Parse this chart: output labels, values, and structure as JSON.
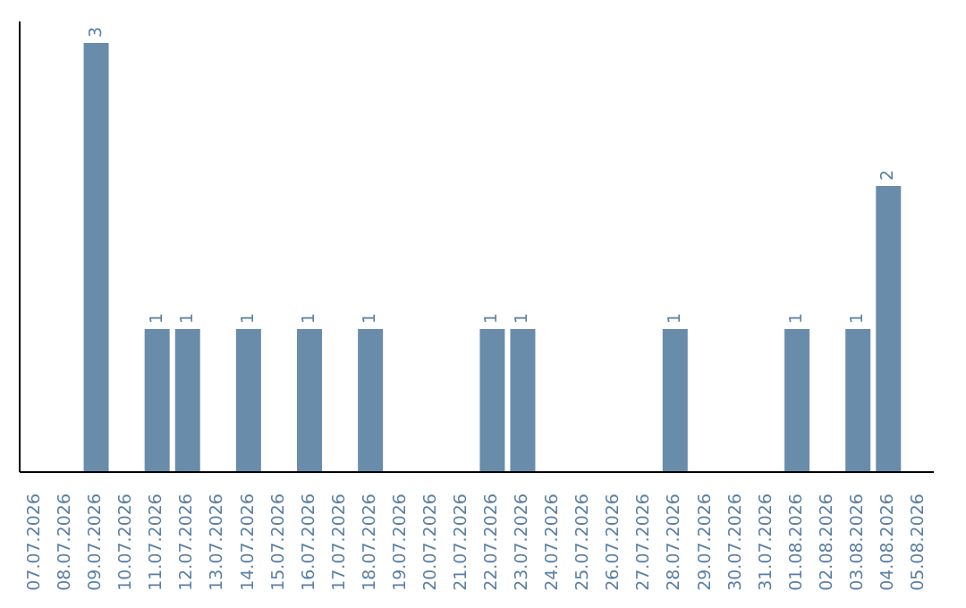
{
  "chart_data": {
    "type": "bar",
    "categories": [
      "07.07.2026",
      "08.07.2026",
      "09.07.2026",
      "10.07.2026",
      "11.07.2026",
      "12.07.2026",
      "13.07.2026",
      "14.07.2026",
      "15.07.2026",
      "16.07.2026",
      "17.07.2026",
      "18.07.2026",
      "19.07.2026",
      "20.07.2026",
      "21.07.2026",
      "22.07.2026",
      "23.07.2026",
      "24.07.2026",
      "25.07.2026",
      "26.07.2026",
      "27.07.2026",
      "28.07.2026",
      "29.07.2026",
      "30.07.2026",
      "31.07.2026",
      "01.08.2026",
      "02.08.2026",
      "03.08.2026",
      "04.08.2026",
      "05.08.2026"
    ],
    "values": [
      0,
      0,
      3,
      0,
      1,
      1,
      0,
      1,
      0,
      1,
      0,
      1,
      0,
      0,
      0,
      1,
      1,
      0,
      0,
      0,
      0,
      1,
      0,
      0,
      0,
      1,
      0,
      1,
      2,
      0
    ],
    "value_labels": [
      null,
      null,
      "3",
      null,
      "1",
      "1",
      null,
      "1",
      null,
      "1",
      null,
      "1",
      null,
      null,
      null,
      "1",
      "1",
      null,
      null,
      null,
      null,
      "1",
      null,
      null,
      null,
      "1",
      null,
      "1",
      "2",
      null
    ],
    "color": "#6a8cab",
    "tick_labels": "x"
  }
}
